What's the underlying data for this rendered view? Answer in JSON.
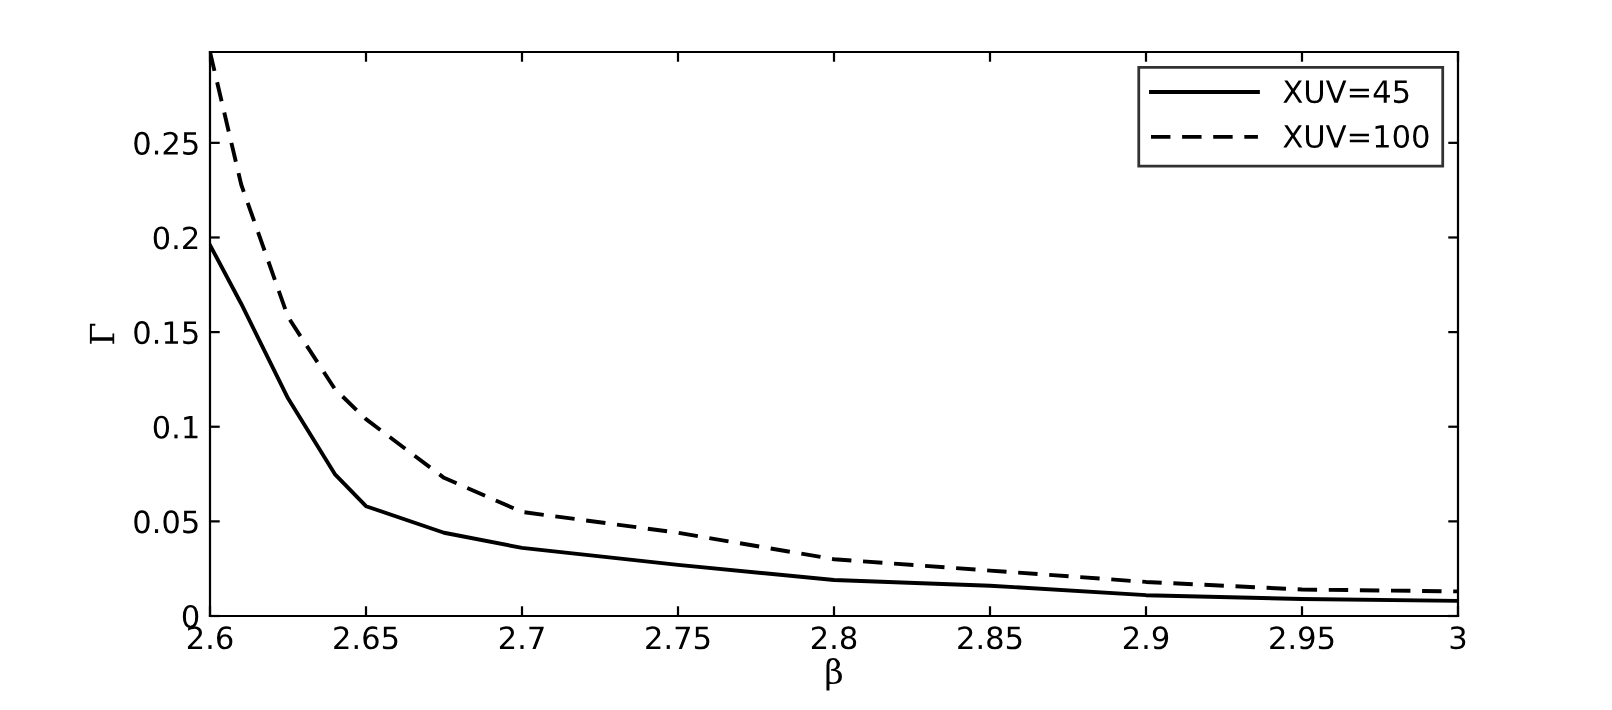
{
  "chart_data": {
    "type": "line",
    "xlabel": "β",
    "ylabel": "Γ",
    "xlim": [
      2.6,
      3.0
    ],
    "ylim": [
      0,
      0.298
    ],
    "xticks": [
      2.6,
      2.65,
      2.7,
      2.75,
      2.8,
      2.85,
      2.9,
      2.95,
      3
    ],
    "yticks": [
      0,
      0.05,
      0.1,
      0.15,
      0.2,
      0.25
    ],
    "legend": "top right",
    "grid": false,
    "series": [
      {
        "name": "XUV=45",
        "color": "#000000",
        "line_style": "solid",
        "x": [
          2.6,
          2.61,
          2.625,
          2.64,
          2.65,
          2.675,
          2.7,
          2.75,
          2.8,
          2.85,
          2.9,
          2.95,
          3.0
        ],
        "values": [
          0.196,
          0.165,
          0.115,
          0.075,
          0.058,
          0.044,
          0.036,
          0.027,
          0.019,
          0.016,
          0.011,
          0.009,
          0.008
        ]
      },
      {
        "name": "XUV=100",
        "color": "#000000",
        "line_style": "dashed",
        "x": [
          2.6,
          2.61,
          2.625,
          2.64,
          2.65,
          2.675,
          2.7,
          2.75,
          2.8,
          2.85,
          2.9,
          2.95,
          3.0
        ],
        "values": [
          0.298,
          0.228,
          0.158,
          0.12,
          0.104,
          0.073,
          0.055,
          0.044,
          0.03,
          0.024,
          0.018,
          0.014,
          0.013
        ]
      }
    ]
  }
}
